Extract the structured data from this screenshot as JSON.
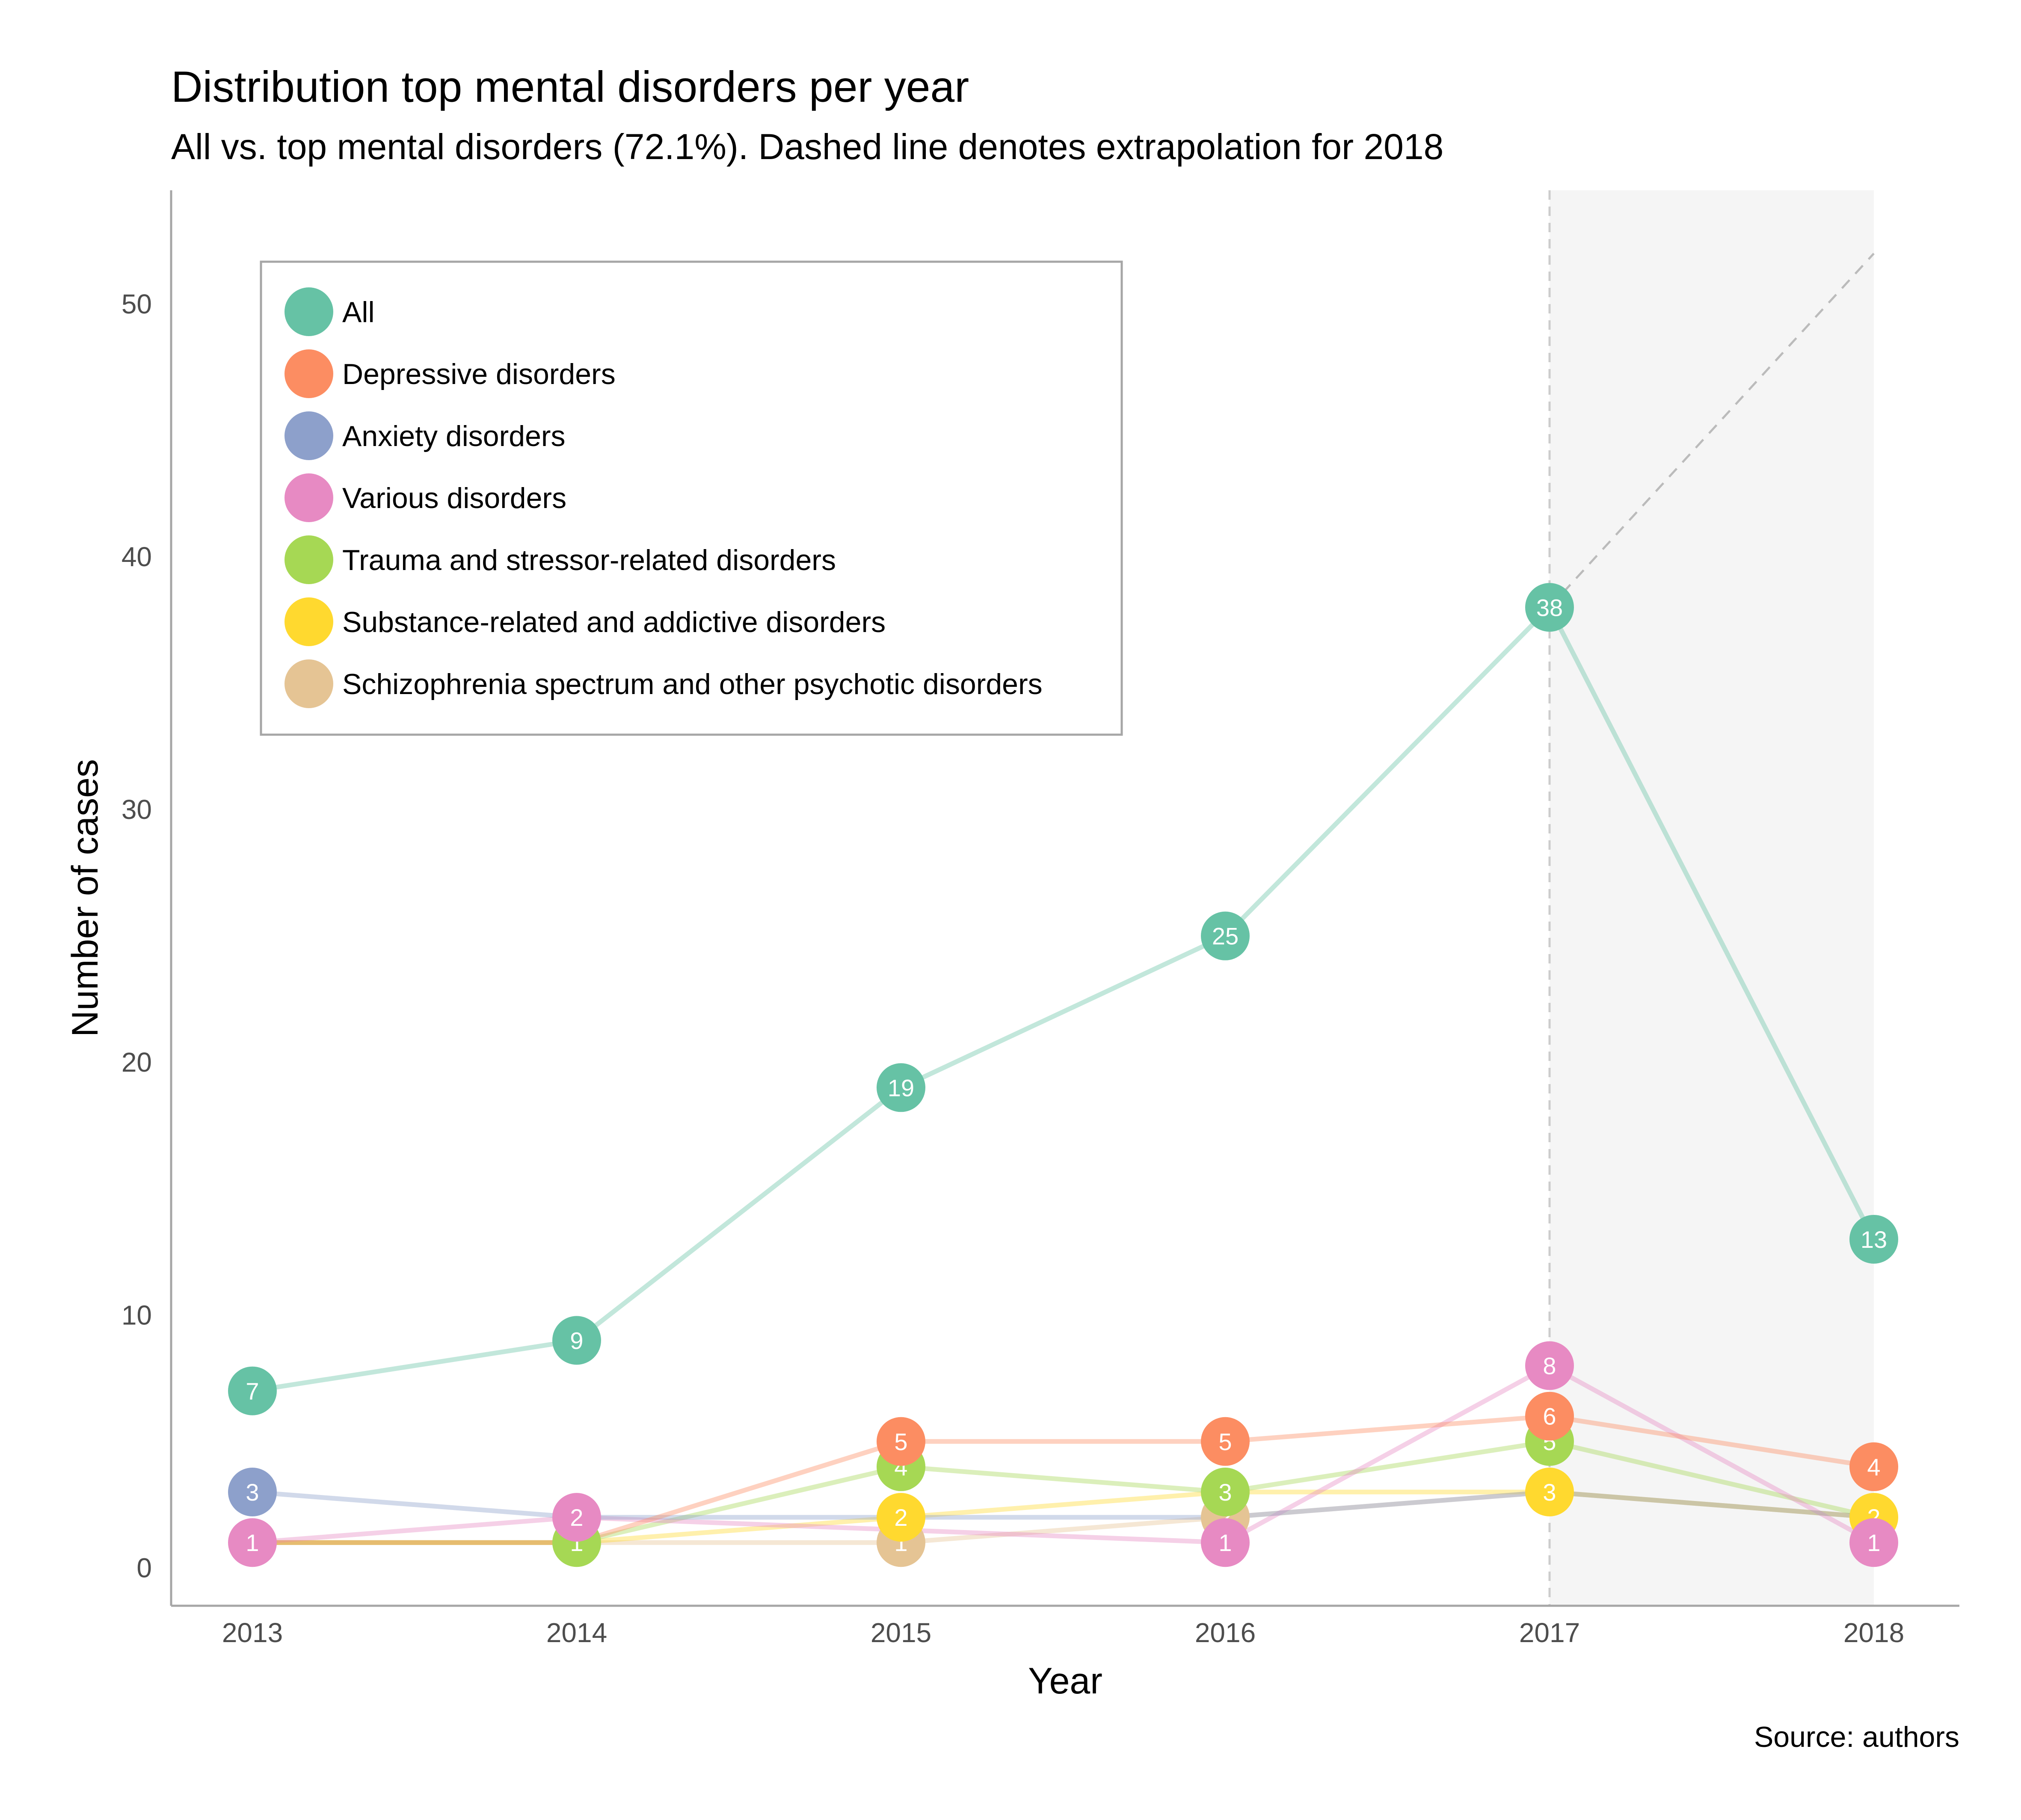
{
  "chart_data": {
    "type": "line",
    "title": "Distribution top mental disorders per year",
    "subtitle": "All vs. top mental disorders (72.1%). Dashed line denotes extrapolation for 2018",
    "xlabel": "Year",
    "ylabel": "Number of cases",
    "caption": "Source: authors",
    "categories": [
      "2013",
      "2014",
      "2015",
      "2016",
      "2017",
      "2018"
    ],
    "yticks": [
      0,
      10,
      20,
      30,
      40,
      50
    ],
    "ylim": [
      -1.5,
      54.5
    ],
    "grid": false,
    "legend_position": "top-left",
    "highlight_region": {
      "from": "2017",
      "to": "2018",
      "color": "#f5f5f5"
    },
    "reference_line": {
      "x": "2017",
      "style": "dashed",
      "color": "#cccccc"
    },
    "extrapolation": {
      "series": "All",
      "from": {
        "x": "2017",
        "y": 38
      },
      "to": {
        "x": "2018",
        "y": 52
      },
      "style": "dashed",
      "color": "#bbbbbb"
    },
    "series": [
      {
        "name": "All",
        "color": "#66C2A5",
        "values": [
          7,
          9,
          19,
          25,
          38,
          13
        ],
        "labels": [
          "7",
          "9",
          "19",
          "25",
          "38",
          "13"
        ]
      },
      {
        "name": "Depressive disorders",
        "color": "#FC8D62",
        "values": [
          1,
          1,
          5,
          5,
          6,
          4
        ],
        "labels": [
          null,
          null,
          "5",
          "5",
          "6",
          "4"
        ]
      },
      {
        "name": "Anxiety disorders",
        "color": "#8DA0CB",
        "values": [
          3,
          2,
          2,
          2,
          3,
          2
        ],
        "labels": [
          "3",
          null,
          null,
          null,
          null,
          null
        ]
      },
      {
        "name": "Various disorders",
        "color": "#E78AC3",
        "values": [
          1,
          2,
          1.5,
          1,
          8,
          1
        ],
        "labels": [
          "1",
          "2",
          null,
          "1",
          "8",
          "1"
        ]
      },
      {
        "name": "Trauma and stressor-related disorders",
        "color": "#A6D854",
        "values": [
          1,
          1,
          4,
          3,
          5,
          2
        ],
        "labels": [
          null,
          "1",
          "4",
          "3",
          "5",
          null
        ]
      },
      {
        "name": "Substance-related and addictive disorders",
        "color": "#FFD92F",
        "values": [
          1,
          1,
          2,
          3,
          3,
          2
        ],
        "labels": [
          null,
          null,
          "2",
          null,
          "3",
          "2"
        ]
      },
      {
        "name": "Schizophrenia spectrum and other psychotic disorders",
        "color": "#E5C494",
        "values": [
          1,
          1,
          1,
          2,
          3,
          2
        ],
        "labels": [
          null,
          null,
          "1",
          "2",
          null,
          null
        ]
      }
    ]
  }
}
